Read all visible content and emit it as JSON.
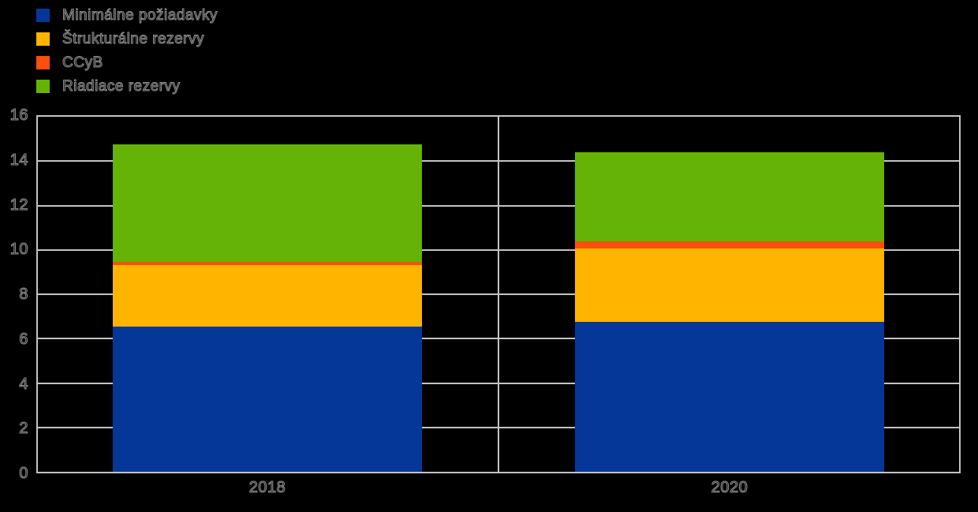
{
  "chart_data": {
    "type": "bar",
    "variant": "stacked-vertical",
    "title": "",
    "categories": [
      "2018",
      "2020"
    ],
    "series": [
      {
        "name": "Minimálne požiadavky",
        "color": "#053799",
        "values": [
          6.55,
          6.75
        ]
      },
      {
        "name": "Štrukturálne rezervy",
        "color": "#FFB400",
        "values": [
          2.75,
          3.3
        ]
      },
      {
        "name": "CCyB",
        "color": "#FC4E0D",
        "values": [
          0.15,
          0.35
        ]
      },
      {
        "name": "Riadiace rezervy",
        "color": "#64B306",
        "values": [
          5.3,
          4.0
        ]
      }
    ],
    "totals": [
      14.75,
      14.4
    ],
    "xlabel": "",
    "ylabel": "",
    "ylim": [
      0,
      16
    ],
    "yticks": [
      0,
      2,
      4,
      6,
      8,
      10,
      12,
      14,
      16
    ],
    "grid": true,
    "panel_divider_between_categories": true,
    "legend_position": "top-left",
    "colors": {
      "background": "#000000",
      "gridline": "#c3c3c3",
      "frame": "#c3c3c3",
      "text_outline": "#8f8f8f"
    }
  }
}
